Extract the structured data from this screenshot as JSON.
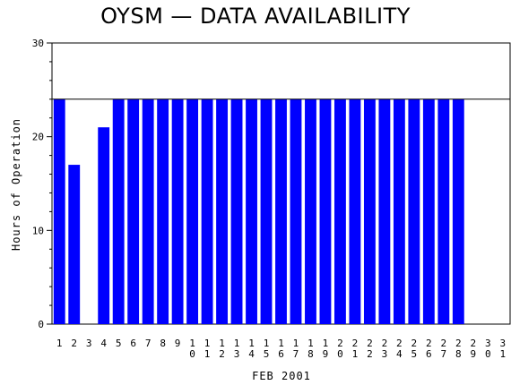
{
  "chart_data": {
    "type": "bar",
    "title": "OYSM — DATA AVAILABILITY",
    "xlabel": "FEB 2001",
    "ylabel": "Hours of Operation",
    "ylim": [
      0,
      30
    ],
    "yticks": [
      0,
      10,
      20,
      30
    ],
    "reference_line": 24,
    "categories": [
      "1",
      "2",
      "3",
      "4",
      "5",
      "6",
      "7",
      "8",
      "9",
      "10",
      "11",
      "12",
      "13",
      "14",
      "15",
      "16",
      "17",
      "18",
      "19",
      "20",
      "21",
      "22",
      "23",
      "24",
      "25",
      "26",
      "27",
      "28",
      "29",
      "30",
      "31"
    ],
    "values": [
      24,
      17,
      0,
      21,
      24,
      24,
      24,
      24,
      24,
      24,
      24,
      24,
      24,
      24,
      24,
      24,
      24,
      24,
      24,
      24,
      24,
      24,
      24,
      24,
      24,
      24,
      24,
      24,
      0,
      0,
      0
    ],
    "bar_color": "#0000ff",
    "grid": false
  }
}
